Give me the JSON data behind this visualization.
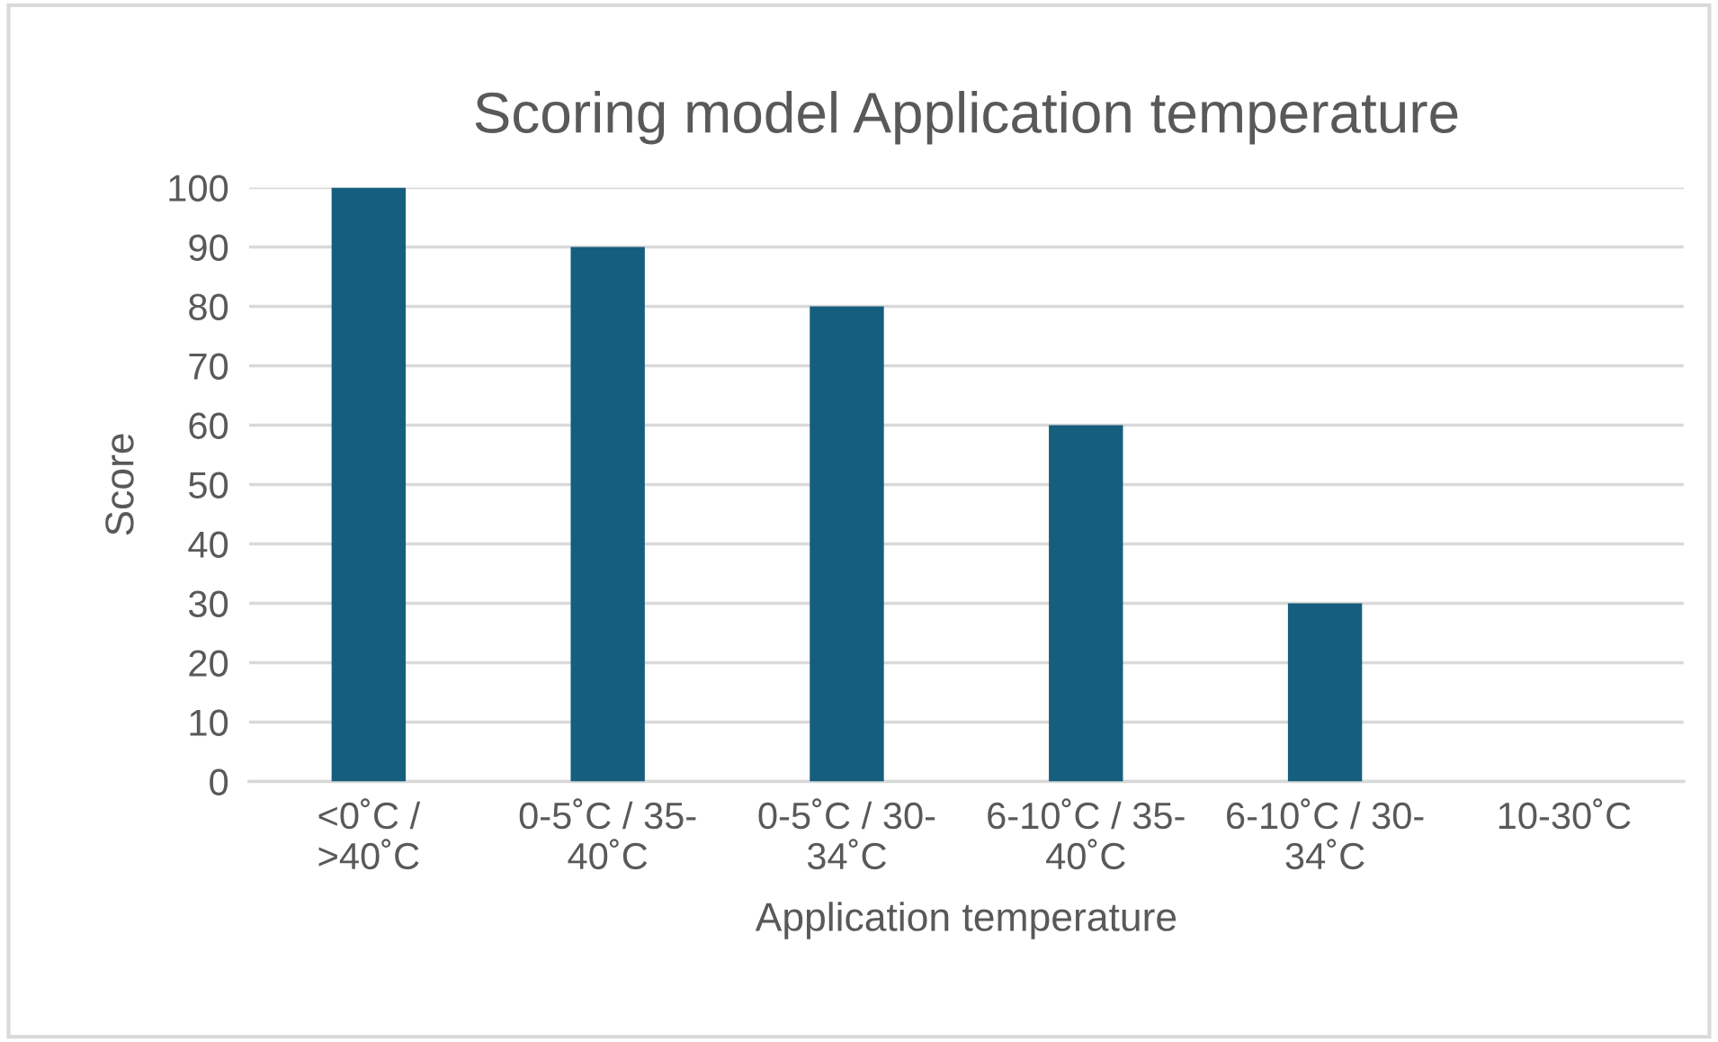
{
  "chart_data": {
    "type": "bar",
    "title": "Scoring model Application temperature",
    "xlabel": "Application temperature",
    "ylabel": "Score",
    "categories": [
      "<0˚C /\n>40˚C",
      "0-5˚C / 35-\n40˚C",
      "0-5˚C / 30-\n34˚C",
      "6-10˚C / 35-\n40˚C",
      "6-10˚C / 30-\n34˚C",
      "10-30˚C"
    ],
    "values": [
      100,
      90,
      80,
      60,
      30,
      0
    ],
    "color": "#155e7e",
    "ylim": [
      0,
      100
    ],
    "yticks": [
      0,
      10,
      20,
      30,
      40,
      50,
      60,
      70,
      80,
      90,
      100
    ],
    "grid": "y",
    "legend": false
  }
}
